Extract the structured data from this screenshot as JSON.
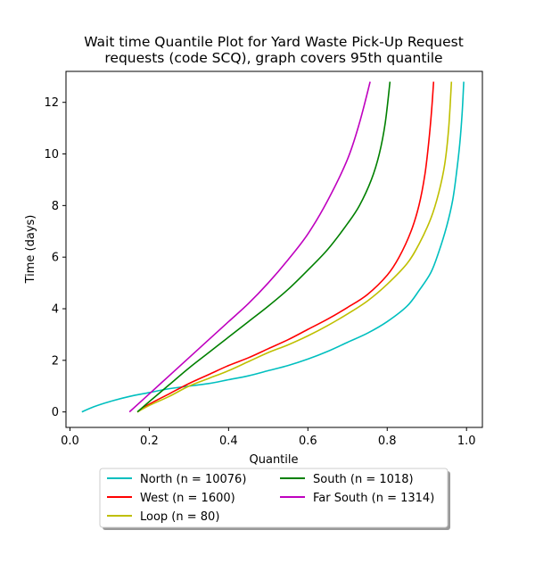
{
  "chart_data": {
    "type": "line",
    "title_lines": [
      "Wait time Quantile Plot for Yard Waste Pick-Up Request",
      "requests (code SCQ), graph covers 95th quantile"
    ],
    "xlabel": "Quantile",
    "ylabel": "Time (days)",
    "xlim": [
      -0.01,
      1.04
    ],
    "ylim": [
      -0.6,
      13.2
    ],
    "xticks": [
      0.0,
      0.2,
      0.4,
      0.6,
      0.8,
      1.0
    ],
    "xtick_labels": [
      "0.0",
      "0.2",
      "0.4",
      "0.6",
      "0.8",
      "1.0"
    ],
    "yticks": [
      0,
      2,
      4,
      6,
      8,
      10,
      12
    ],
    "ytick_labels": [
      "0",
      "2",
      "4",
      "6",
      "8",
      "10",
      "12"
    ],
    "grid": false,
    "legend_position": "below",
    "series": [
      {
        "name": "North (n = 10076)",
        "color": "#00bfbf",
        "points": [
          [
            0.03,
            0.0
          ],
          [
            0.06,
            0.2
          ],
          [
            0.1,
            0.4
          ],
          [
            0.15,
            0.6
          ],
          [
            0.2,
            0.75
          ],
          [
            0.25,
            0.9
          ],
          [
            0.3,
            1.0
          ],
          [
            0.35,
            1.1
          ],
          [
            0.4,
            1.25
          ],
          [
            0.45,
            1.4
          ],
          [
            0.5,
            1.6
          ],
          [
            0.55,
            1.8
          ],
          [
            0.6,
            2.05
          ],
          [
            0.65,
            2.35
          ],
          [
            0.7,
            2.7
          ],
          [
            0.75,
            3.05
          ],
          [
            0.8,
            3.5
          ],
          [
            0.85,
            4.1
          ],
          [
            0.88,
            4.7
          ],
          [
            0.91,
            5.4
          ],
          [
            0.93,
            6.2
          ],
          [
            0.95,
            7.2
          ],
          [
            0.965,
            8.2
          ],
          [
            0.975,
            9.3
          ],
          [
            0.983,
            10.4
          ],
          [
            0.989,
            11.6
          ],
          [
            0.993,
            12.8
          ]
        ]
      },
      {
        "name": "West (n = 1600)",
        "color": "#ff0000",
        "points": [
          [
            0.17,
            0.0
          ],
          [
            0.2,
            0.3
          ],
          [
            0.25,
            0.7
          ],
          [
            0.3,
            1.1
          ],
          [
            0.35,
            1.45
          ],
          [
            0.4,
            1.8
          ],
          [
            0.45,
            2.1
          ],
          [
            0.5,
            2.45
          ],
          [
            0.55,
            2.8
          ],
          [
            0.6,
            3.2
          ],
          [
            0.65,
            3.6
          ],
          [
            0.7,
            4.05
          ],
          [
            0.75,
            4.55
          ],
          [
            0.8,
            5.3
          ],
          [
            0.83,
            6.0
          ],
          [
            0.86,
            7.0
          ],
          [
            0.88,
            8.0
          ],
          [
            0.895,
            9.2
          ],
          [
            0.905,
            10.5
          ],
          [
            0.912,
            11.7
          ],
          [
            0.917,
            12.8
          ]
        ]
      },
      {
        "name": "Loop (n = 80)",
        "color": "#bfbf00",
        "points": [
          [
            0.17,
            0.0
          ],
          [
            0.2,
            0.25
          ],
          [
            0.25,
            0.6
          ],
          [
            0.3,
            1.0
          ],
          [
            0.35,
            1.3
          ],
          [
            0.4,
            1.6
          ],
          [
            0.45,
            1.95
          ],
          [
            0.5,
            2.3
          ],
          [
            0.55,
            2.6
          ],
          [
            0.6,
            2.95
          ],
          [
            0.65,
            3.35
          ],
          [
            0.7,
            3.8
          ],
          [
            0.75,
            4.3
          ],
          [
            0.8,
            4.95
          ],
          [
            0.85,
            5.75
          ],
          [
            0.88,
            6.5
          ],
          [
            0.91,
            7.5
          ],
          [
            0.93,
            8.5
          ],
          [
            0.945,
            9.6
          ],
          [
            0.955,
            11.0
          ],
          [
            0.962,
            12.8
          ]
        ]
      },
      {
        "name": "South (n = 1018)",
        "color": "#008000",
        "points": [
          [
            0.17,
            0.0
          ],
          [
            0.2,
            0.4
          ],
          [
            0.25,
            1.05
          ],
          [
            0.3,
            1.7
          ],
          [
            0.35,
            2.3
          ],
          [
            0.4,
            2.9
          ],
          [
            0.45,
            3.5
          ],
          [
            0.5,
            4.1
          ],
          [
            0.55,
            4.75
          ],
          [
            0.6,
            5.5
          ],
          [
            0.65,
            6.3
          ],
          [
            0.7,
            7.3
          ],
          [
            0.73,
            8.0
          ],
          [
            0.76,
            9.0
          ],
          [
            0.78,
            10.0
          ],
          [
            0.795,
            11.2
          ],
          [
            0.807,
            12.8
          ]
        ]
      },
      {
        "name": "Far South (n = 1314)",
        "color": "#bf00bf",
        "points": [
          [
            0.15,
            0.0
          ],
          [
            0.2,
            0.7
          ],
          [
            0.25,
            1.4
          ],
          [
            0.3,
            2.1
          ],
          [
            0.35,
            2.8
          ],
          [
            0.4,
            3.5
          ],
          [
            0.45,
            4.2
          ],
          [
            0.5,
            5.0
          ],
          [
            0.55,
            5.9
          ],
          [
            0.6,
            6.9
          ],
          [
            0.65,
            8.2
          ],
          [
            0.7,
            9.8
          ],
          [
            0.73,
            11.2
          ],
          [
            0.757,
            12.8
          ]
        ]
      }
    ]
  }
}
